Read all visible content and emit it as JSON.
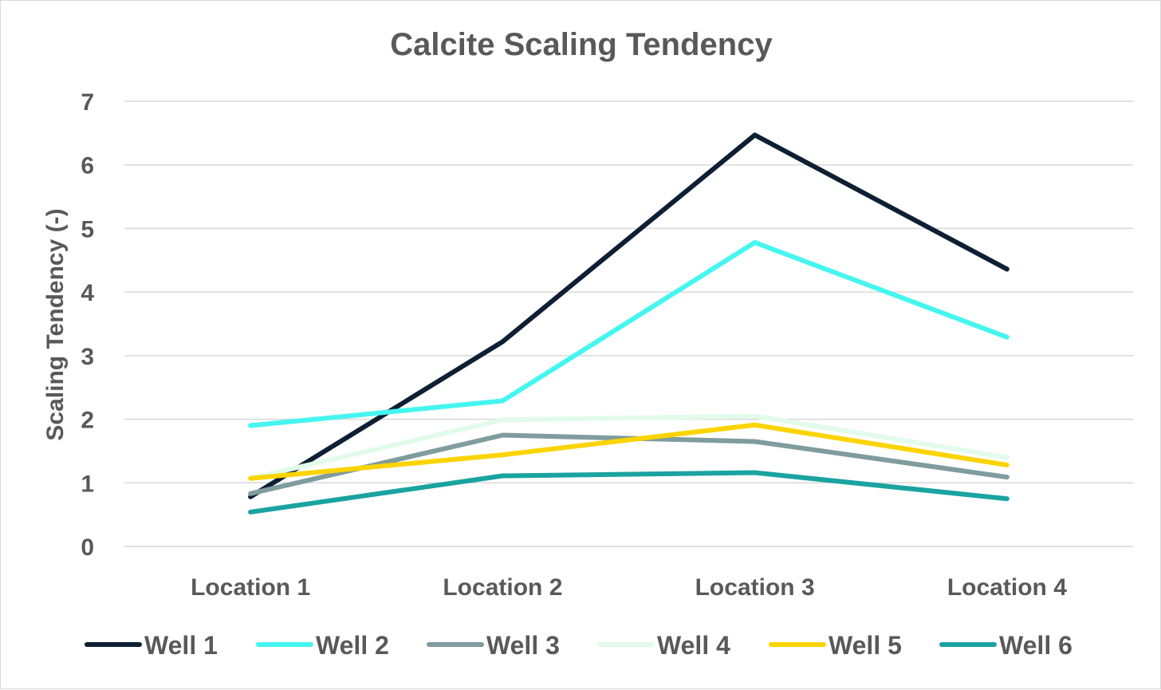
{
  "chart_data": {
    "type": "line",
    "title": "Calcite Scaling Tendency",
    "xlabel": "",
    "ylabel": "Scaling Tendency (-)",
    "categories": [
      "Location 1",
      "Location 2",
      "Location 3",
      "Location 4"
    ],
    "ylim": [
      0,
      7
    ],
    "yticks": [
      "0",
      "1",
      "2",
      "3",
      "4",
      "5",
      "6",
      "7"
    ],
    "grid": true,
    "legend_position": "bottom",
    "series": [
      {
        "name": "Well 1",
        "color": "#0e1f33",
        "values": [
          0.78,
          3.22,
          6.47,
          4.36
        ]
      },
      {
        "name": "Well 2",
        "color": "#45f5f0",
        "values": [
          1.9,
          2.29,
          4.78,
          3.29
        ]
      },
      {
        "name": "Well 3",
        "color": "#7f9c9e",
        "values": [
          0.83,
          1.75,
          1.65,
          1.09
        ]
      },
      {
        "name": "Well 4",
        "color": "#e2fbea",
        "values": [
          1.07,
          1.99,
          2.05,
          1.4
        ]
      },
      {
        "name": "Well 5",
        "color": "#fbd400",
        "values": [
          1.07,
          1.44,
          1.91,
          1.28
        ]
      },
      {
        "name": "Well 6",
        "color": "#1aa3a0",
        "values": [
          0.54,
          1.11,
          1.16,
          0.75
        ]
      }
    ]
  }
}
